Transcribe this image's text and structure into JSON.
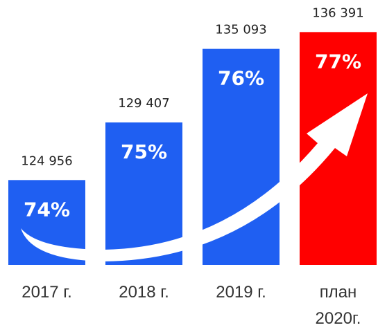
{
  "chart_data": {
    "type": "bar",
    "categories": [
      "2017 г.",
      "2018 г.",
      "2019 г.",
      "план 2020г."
    ],
    "values": [
      124956,
      129407,
      135093,
      136391
    ],
    "value_labels": [
      "124 956",
      "129 407",
      "135 093",
      "136 391"
    ],
    "percents": [
      74,
      75,
      76,
      77
    ],
    "percent_labels": [
      "74%",
      "75%",
      "76%",
      "77%"
    ],
    "colors": [
      "#1f5ff2",
      "#1f5ff2",
      "#1f5ff2",
      "#ff0000"
    ],
    "ylim": [
      118400,
      137800
    ]
  }
}
